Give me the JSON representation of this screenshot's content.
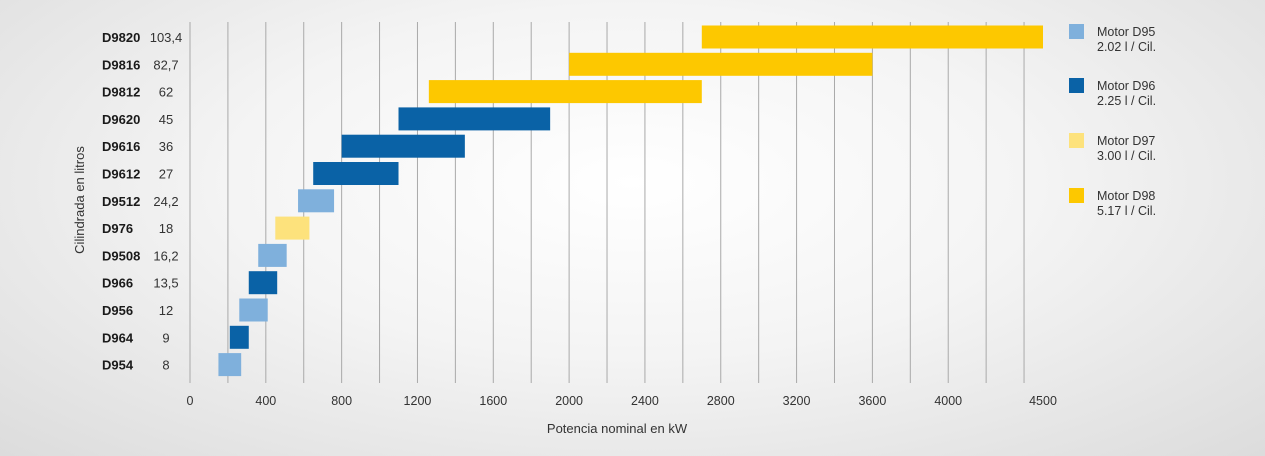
{
  "chart_data": {
    "type": "bar",
    "subtype": "horizontal-range",
    "xlabel": "Potencia nominal en kW",
    "ylabel": "Cilindrada en litros",
    "xlim": [
      0,
      4500
    ],
    "x_ticks": [
      "0",
      "400",
      "800",
      "1200",
      "1600",
      "2000",
      "2400",
      "2800",
      "3200",
      "3600",
      "4000",
      "4500"
    ],
    "grid": "vertical",
    "legend_position": "right",
    "engines": [
      {
        "name": "D9820",
        "displacement": "103,4",
        "series": "D98",
        "start": 2700,
        "end": 4500
      },
      {
        "name": "D9816",
        "displacement": "82,7",
        "series": "D98",
        "start": 2000,
        "end": 3600
      },
      {
        "name": "D9812",
        "displacement": "62",
        "series": "D98",
        "start": 1260,
        "end": 2700
      },
      {
        "name": "D9620",
        "displacement": "45",
        "series": "D96",
        "start": 1100,
        "end": 1900
      },
      {
        "name": "D9616",
        "displacement": "36",
        "series": "D96",
        "start": 800,
        "end": 1450
      },
      {
        "name": "D9612",
        "displacement": "27",
        "series": "D96",
        "start": 650,
        "end": 1100
      },
      {
        "name": "D9512",
        "displacement": "24,2",
        "series": "D95",
        "start": 570,
        "end": 760
      },
      {
        "name": "D976",
        "displacement": "18",
        "series": "D97",
        "start": 450,
        "end": 630
      },
      {
        "name": "D9508",
        "displacement": "16,2",
        "series": "D95",
        "start": 360,
        "end": 510
      },
      {
        "name": "D966",
        "displacement": "13,5",
        "series": "D96",
        "start": 310,
        "end": 460
      },
      {
        "name": "D956",
        "displacement": "12",
        "series": "D95",
        "start": 260,
        "end": 410
      },
      {
        "name": "D964",
        "displacement": "9",
        "series": "D96",
        "start": 210,
        "end": 310
      },
      {
        "name": "D954",
        "displacement": "8",
        "series": "D95",
        "start": 150,
        "end": 270
      }
    ],
    "legend": [
      {
        "key": "D95",
        "line1": "Motor D95",
        "line2": "2.02 l / Cil.",
        "color": "#7fb0dc"
      },
      {
        "key": "D96",
        "line1": "Motor D96",
        "line2": "2.25 l / Cil.",
        "color": "#0a62a6"
      },
      {
        "key": "D97",
        "line1": "Motor D97",
        "line2": "3.00 l / Cil.",
        "color": "#fde27c"
      },
      {
        "key": "D98",
        "line1": "Motor D98",
        "line2": "5.17 l / Cil.",
        "color": "#fdc800"
      }
    ]
  }
}
